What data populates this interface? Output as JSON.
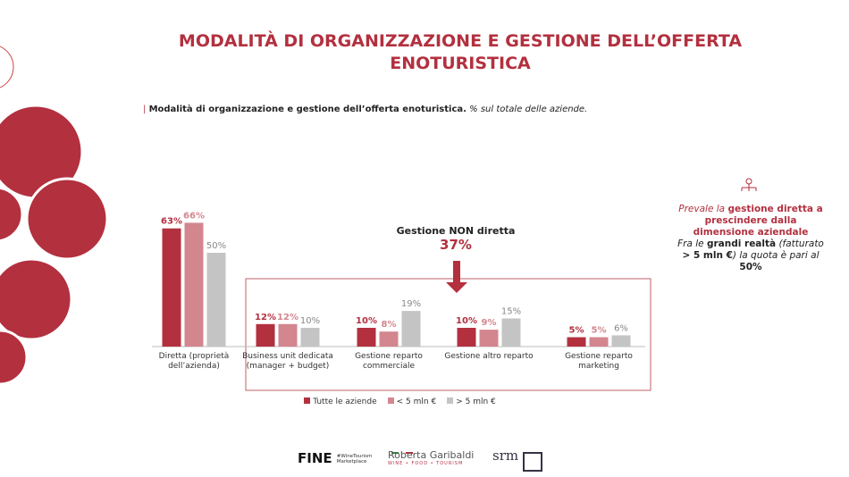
{
  "chart_data": {
    "type": "bar",
    "title": "MODALITÀ DI ORGANIZZAZIONE E GESTIONE DELL’OFFERTA ENOTURISTICA",
    "subtitle": {
      "bold": "Modalità di organizzazione e gestione dell’offerta enoturistica.",
      "italic": "% sul totale delle aziende."
    },
    "categories": [
      "Diretta (proprietà dell’azienda)",
      "Business unit dedicata (manager + budget)",
      "Gestione reparto commerciale",
      "Gestione altro reparto",
      "Gestione reparto marketing"
    ],
    "series": [
      {
        "name": "Tutte le aziende",
        "color": "#b3303f",
        "values": [
          63,
          12,
          10,
          10,
          5
        ],
        "value_labels": [
          "63%",
          "12%",
          "10%",
          "10%",
          "5%"
        ]
      },
      {
        "name": "< 5 mln €",
        "color": "#d3868e",
        "values": [
          66,
          12,
          8,
          9,
          5
        ],
        "value_labels": [
          "66%",
          "12%",
          "8%",
          "9%",
          "5%"
        ]
      },
      {
        "name": "> 5 mln €",
        "color": "#c4c4c4",
        "values": [
          50,
          10,
          19,
          15,
          6
        ],
        "value_labels": [
          "50%",
          "10%",
          "19%",
          "15%",
          "6%"
        ]
      }
    ],
    "annotation": {
      "label": "Gestione NON diretta",
      "value": "37%"
    },
    "legend": "bottom"
  },
  "note": {
    "first": [
      "Prevale la ",
      "gestione diretta a prescindere dalla dimensione aziendale"
    ],
    "second": [
      "Fra le ",
      "grandi realtà",
      " (fatturato ",
      "> 5 mln €",
      ") la quota è pari al ",
      "50%"
    ]
  },
  "footer": {
    "fine": "FINE",
    "fine_sub": "#WineTourism Marketplace",
    "garibaldi": "Roberta Garibaldi",
    "garibaldi_sub": "WINE • FOOD • TOURISM",
    "srm": "srm"
  }
}
